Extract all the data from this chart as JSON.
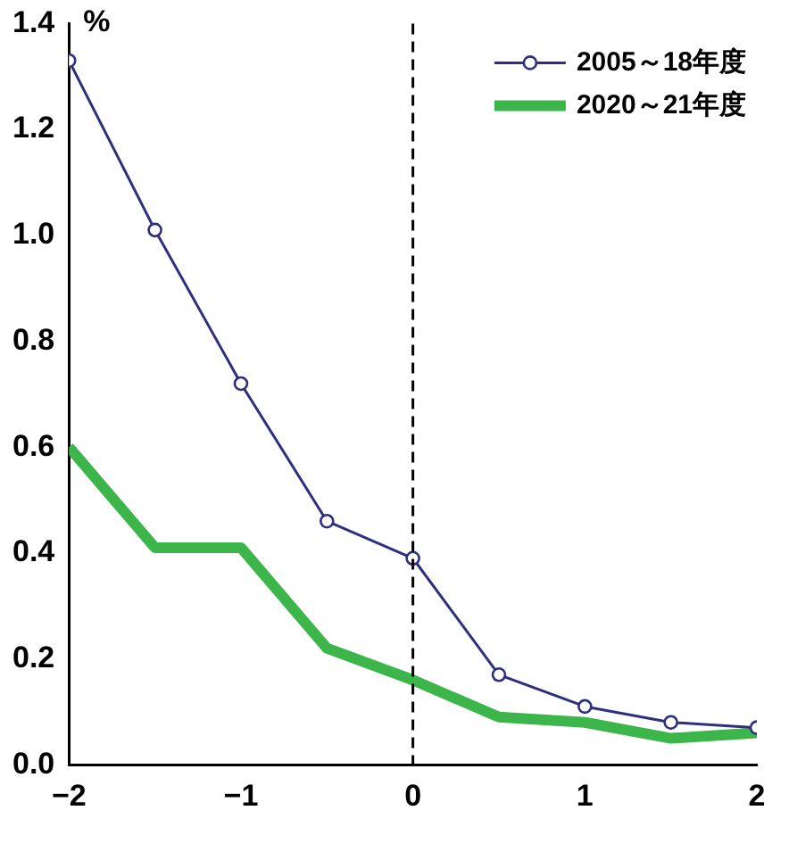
{
  "chart_data": {
    "type": "line",
    "ylabel": "%",
    "x": [
      -2,
      -1.5,
      -1,
      -0.5,
      0,
      0.5,
      1,
      1.5,
      2
    ],
    "series": [
      {
        "name": "2005～18年度",
        "color": "#2e2f7f",
        "marker": "circle",
        "values": [
          1.33,
          1.01,
          0.72,
          0.46,
          0.39,
          0.17,
          0.11,
          0.08,
          0.07
        ]
      },
      {
        "name": "2020～21年度",
        "color": "#3cb54a",
        "marker": "none",
        "values": [
          0.6,
          0.41,
          0.41,
          0.22,
          0.16,
          0.09,
          0.08,
          0.05,
          0.06
        ]
      }
    ],
    "xlim": [
      -2,
      2
    ],
    "xticks": [
      {
        "value": -2,
        "label": "−2"
      },
      {
        "value": -1,
        "label": "−1"
      },
      0,
      1,
      2
    ],
    "ylim": [
      0,
      1.4
    ],
    "yticks": [
      {
        "value": 0,
        "label": "0.0"
      },
      {
        "value": 0.2,
        "label": "0.2"
      },
      {
        "value": 0.4,
        "label": "0.4"
      },
      {
        "value": 0.6,
        "label": "0.6"
      },
      {
        "value": 0.8,
        "label": "0.8"
      },
      {
        "value": 1,
        "label": "1.0"
      },
      {
        "value": 1.2,
        "label": "1.2"
      },
      {
        "value": 1.4,
        "label": "1.4"
      }
    ],
    "ref_lines": [
      {
        "axis": "x",
        "value": 0,
        "line_style": "dashed",
        "color": "#000000"
      }
    ],
    "grid": false,
    "legend": "top right"
  }
}
